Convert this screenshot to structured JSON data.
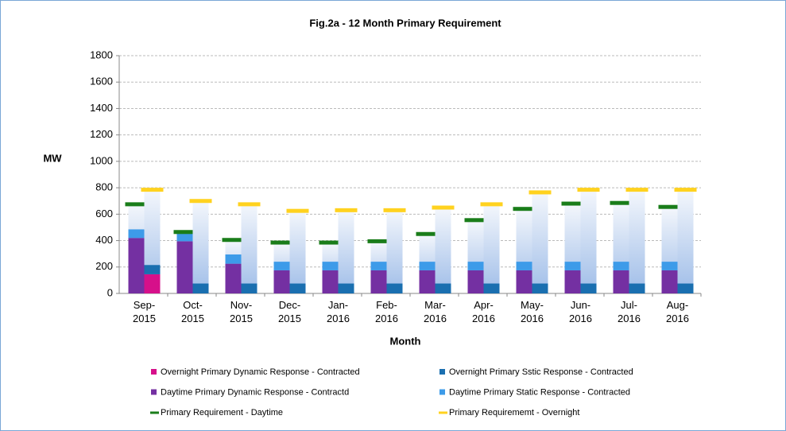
{
  "chart_data": {
    "type": "bar",
    "title": "Fig.2a - 12 Month Primary Requirement",
    "x_label": "Month",
    "y_label": "MW",
    "categories": [
      "Sep-2015",
      "Oct-2015",
      "Nov-2015",
      "Dec-2015",
      "Jan-2016",
      "Feb-2016",
      "Mar-2016",
      "Apr-2016",
      "May-2016",
      "Jun-2016",
      "Jul-2016",
      "Aug-2016"
    ],
    "series": [
      {
        "name": "Overnight Primary Dynamic Response - Contracted",
        "color": "#d6108a",
        "values": [
          145,
          0,
          0,
          0,
          0,
          0,
          0,
          0,
          0,
          0,
          0,
          0
        ]
      },
      {
        "name": "Overnight Primary Sstic Response - Contracted",
        "color": "#1a6fb0",
        "values": [
          70,
          75,
          75,
          75,
          75,
          75,
          75,
          75,
          75,
          75,
          75,
          75
        ]
      },
      {
        "name": "Daytime Primary Dynamic Response - Contractd",
        "color": "#7430a2",
        "values": [
          420,
          395,
          225,
          175,
          175,
          175,
          175,
          175,
          175,
          175,
          175,
          175
        ]
      },
      {
        "name": "Daytime Primary Static Response - Contracted",
        "color": "#3d9be9",
        "values": [
          65,
          60,
          70,
          65,
          65,
          65,
          65,
          65,
          65,
          65,
          65,
          65
        ]
      },
      {
        "name": "Primary Requirement - Daytime",
        "color": "#1a7d1a",
        "values": [
          675,
          465,
          405,
          385,
          385,
          395,
          450,
          555,
          640,
          680,
          685,
          655
        ]
      },
      {
        "name": "Primary Requirememt - Overnight",
        "color": "#ffd21f",
        "values": [
          785,
          700,
          675,
          625,
          630,
          630,
          650,
          675,
          765,
          785,
          785,
          785
        ]
      }
    ],
    "ylim": [
      0,
      1800
    ],
    "yticks": [
      0,
      200,
      400,
      600,
      800,
      1000,
      1200,
      1400,
      1600,
      1800
    ],
    "grid": true
  }
}
